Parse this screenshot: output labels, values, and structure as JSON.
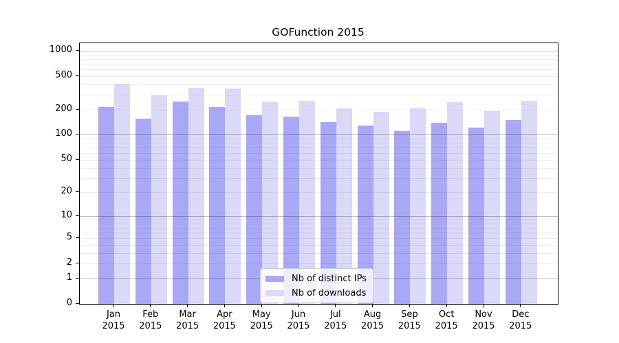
{
  "figure": {
    "title": "GOFunction 2015"
  },
  "chart_data": {
    "type": "bar",
    "title": "GOFunction 2015",
    "categories": [
      "Jan",
      "Feb",
      "Mar",
      "Apr",
      "May",
      "Jun",
      "Jul",
      "Aug",
      "Sep",
      "Oct",
      "Nov",
      "Dec"
    ],
    "year": "2015",
    "series": [
      {
        "name": "Nb of distinct IPs",
        "color": "#a8a8f6",
        "values": [
          214,
          156,
          248,
          213,
          170,
          166,
          142,
          129,
          110,
          140,
          123,
          149
        ]
      },
      {
        "name": "Nb of downloads",
        "color": "#dadaf8",
        "values": [
          396,
          294,
          366,
          354,
          249,
          256,
          208,
          189,
          206,
          247,
          192,
          254
        ]
      }
    ],
    "xlabel": "",
    "ylabel": "",
    "yscale": "log1p",
    "ylim": [
      0,
      1227
    ],
    "yticks": [
      1000,
      500,
      200,
      100,
      50,
      20,
      10,
      5,
      2,
      1,
      0
    ],
    "grid": true,
    "grid_over_bars": true,
    "legend_position": "lower-center"
  }
}
